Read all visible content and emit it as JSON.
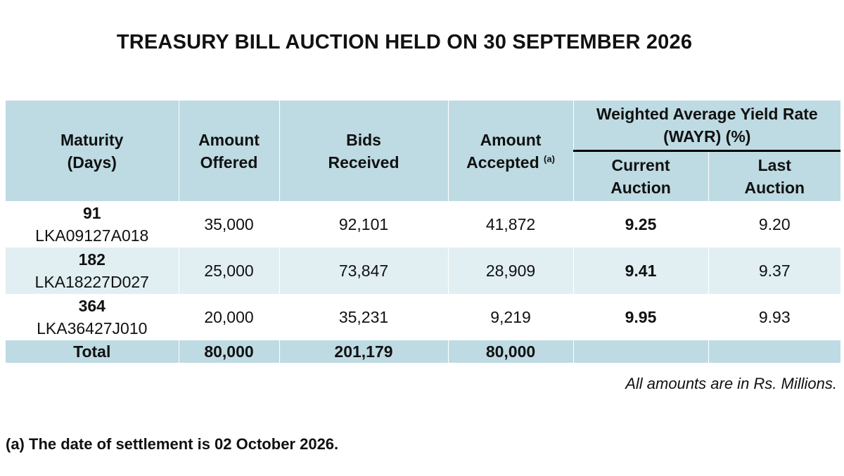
{
  "title": "TREASURY BILL AUCTION HELD ON 30 SEPTEMBER 2026",
  "table": {
    "headers": {
      "maturity_line1": "Maturity",
      "maturity_line2": "(Days)",
      "offered_line1": "Amount",
      "offered_line2": "Offered",
      "bids_line1": "Bids",
      "bids_line2": "Received",
      "accepted_line1": "Amount",
      "accepted_line2": "Accepted",
      "accepted_sup": "(a)",
      "wayr_line1": "Weighted Average Yield Rate",
      "wayr_line2": "(WAYR) (%)",
      "current_line1": "Current",
      "current_line2": "Auction",
      "last_line1": "Last",
      "last_line2": "Auction"
    },
    "rows": [
      {
        "days": "91",
        "code": "LKA09127A018",
        "offered": "35,000",
        "bids": "92,101",
        "accepted": "41,872",
        "current": "9.25",
        "last": "9.20"
      },
      {
        "days": "182",
        "code": "LKA18227D027",
        "offered": "25,000",
        "bids": "73,847",
        "accepted": "28,909",
        "current": "9.41",
        "last": "9.37"
      },
      {
        "days": "364",
        "code": "LKA36427J010",
        "offered": "20,000",
        "bids": "35,231",
        "accepted": "9,219",
        "current": "9.95",
        "last": "9.93"
      }
    ],
    "total": {
      "label": "Total",
      "offered": "80,000",
      "bids": "201,179",
      "accepted": "80,000"
    }
  },
  "note": "All amounts are in Rs. Millions.",
  "footnote": "(a) The date of settlement is 02 October 2026.",
  "colors": {
    "header_bg": "#bedbe3",
    "tint_row_bg": "#e1eff3"
  }
}
